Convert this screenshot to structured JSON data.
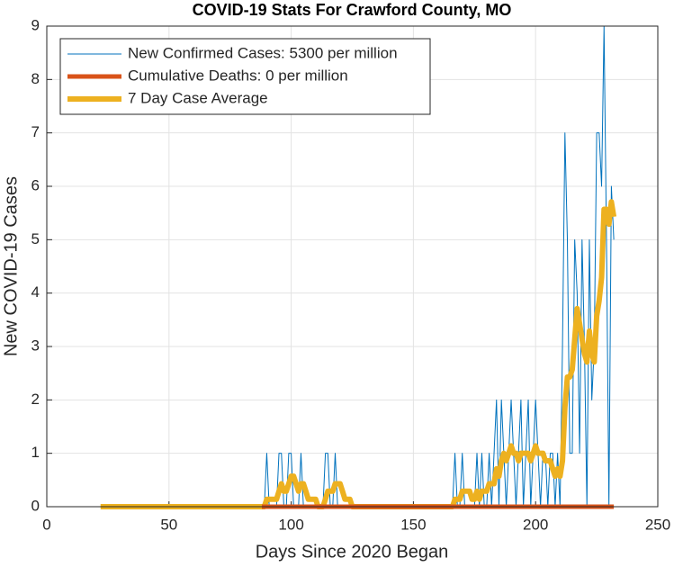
{
  "chart_data": {
    "type": "line",
    "title": "COVID-19 Stats For Crawford County, MO",
    "xlabel": "Days Since 2020 Began",
    "ylabel": "New COVID-19 Cases",
    "xlim": [
      0,
      250
    ],
    "ylim": [
      0,
      9
    ],
    "xticks": [
      0,
      50,
      100,
      150,
      200,
      250
    ],
    "yticks": [
      0,
      1,
      2,
      3,
      4,
      5,
      6,
      7,
      8,
      9
    ],
    "grid": true,
    "legend_position": "northwest",
    "x": [
      22,
      23,
      24,
      25,
      26,
      27,
      28,
      29,
      30,
      31,
      32,
      33,
      34,
      35,
      36,
      37,
      38,
      39,
      40,
      41,
      42,
      43,
      44,
      45,
      46,
      47,
      48,
      49,
      50,
      51,
      52,
      53,
      54,
      55,
      56,
      57,
      58,
      59,
      60,
      61,
      62,
      63,
      64,
      65,
      66,
      67,
      68,
      69,
      70,
      71,
      72,
      73,
      74,
      75,
      76,
      77,
      78,
      79,
      80,
      81,
      82,
      83,
      84,
      85,
      86,
      87,
      88,
      89,
      90,
      91,
      92,
      93,
      94,
      95,
      96,
      97,
      98,
      99,
      100,
      101,
      102,
      103,
      104,
      105,
      106,
      107,
      108,
      109,
      110,
      111,
      112,
      113,
      114,
      115,
      116,
      117,
      118,
      119,
      120,
      121,
      122,
      123,
      124,
      125,
      126,
      127,
      128,
      129,
      130,
      131,
      132,
      133,
      134,
      135,
      136,
      137,
      138,
      139,
      140,
      141,
      142,
      143,
      144,
      145,
      146,
      147,
      148,
      149,
      150,
      151,
      152,
      153,
      154,
      155,
      156,
      157,
      158,
      159,
      160,
      161,
      162,
      163,
      164,
      165,
      166,
      167,
      168,
      169,
      170,
      171,
      172,
      173,
      174,
      175,
      176,
      177,
      178,
      179,
      180,
      181,
      182,
      183,
      184,
      185,
      186,
      187,
      188,
      189,
      190,
      191,
      192,
      193,
      194,
      195,
      196,
      197,
      198,
      199,
      200,
      201,
      202,
      203,
      204,
      205,
      206,
      207,
      208,
      209,
      210,
      211,
      212,
      213,
      214,
      215,
      216,
      217,
      218,
      219,
      220,
      221,
      222,
      223,
      224,
      225,
      226,
      227,
      228,
      229,
      230,
      231,
      232
    ],
    "series": [
      {
        "name": "New Confirmed Cases: 5300 per million",
        "color": "#0072bd",
        "width": 1,
        "values": [
          0,
          0,
          0,
          0,
          0,
          0,
          0,
          0,
          0,
          0,
          0,
          0,
          0,
          0,
          0,
          0,
          0,
          0,
          0,
          0,
          0,
          0,
          0,
          0,
          0,
          0,
          0,
          0,
          0,
          0,
          0,
          0,
          0,
          0,
          0,
          0,
          0,
          0,
          0,
          0,
          0,
          0,
          0,
          0,
          0,
          0,
          0,
          0,
          0,
          0,
          0,
          0,
          0,
          0,
          0,
          0,
          0,
          0,
          0,
          0,
          0,
          0,
          0,
          0,
          0,
          0,
          0,
          0,
          1,
          0,
          0,
          0,
          0,
          1,
          1,
          0,
          0,
          1,
          1,
          0,
          0,
          0,
          1,
          0,
          0,
          0,
          0,
          0,
          0,
          0,
          0,
          0,
          1,
          1,
          0,
          0,
          1,
          0,
          0,
          0,
          0,
          0,
          0,
          0,
          0,
          0,
          0,
          0,
          0,
          0,
          0,
          0,
          0,
          0,
          0,
          0,
          0,
          0,
          0,
          0,
          0,
          0,
          0,
          0,
          0,
          0,
          0,
          0,
          0,
          0,
          0,
          0,
          0,
          0,
          0,
          0,
          0,
          0,
          0,
          0,
          0,
          0,
          0,
          0,
          0,
          1,
          0,
          0,
          1,
          0,
          0,
          0,
          0,
          0,
          1,
          0,
          1,
          0,
          0,
          1,
          0,
          1,
          2,
          0,
          2,
          1,
          0,
          1,
          2,
          1,
          0,
          1,
          2,
          0,
          1,
          2,
          0,
          1,
          2,
          1,
          0,
          1,
          1,
          0,
          1,
          1,
          0,
          1,
          0,
          3,
          7,
          5,
          1,
          1,
          5,
          4,
          1,
          5,
          3,
          0,
          5,
          2,
          3,
          7,
          7,
          6,
          9,
          5,
          0,
          6,
          5
        ]
      },
      {
        "name": "Cumulative Deaths: 0 per million",
        "color": "#d95319",
        "width": 5,
        "values": [
          null,
          null,
          null,
          null,
          null,
          null,
          null,
          null,
          null,
          null,
          null,
          null,
          null,
          null,
          null,
          null,
          null,
          null,
          null,
          null,
          null,
          null,
          null,
          null,
          null,
          null,
          null,
          null,
          null,
          null,
          null,
          null,
          null,
          null,
          null,
          null,
          null,
          null,
          null,
          null,
          null,
          null,
          null,
          null,
          null,
          null,
          null,
          null,
          null,
          null,
          null,
          null,
          null,
          null,
          null,
          null,
          null,
          null,
          null,
          null,
          null,
          null,
          null,
          null,
          null,
          null,
          0,
          0,
          0,
          0,
          0,
          0,
          0,
          0,
          0,
          0,
          0,
          0,
          0,
          0,
          0,
          0,
          0,
          0,
          0,
          0,
          0,
          0,
          0,
          0,
          0,
          0,
          0,
          0,
          0,
          0,
          0,
          0,
          0,
          0,
          0,
          0,
          0,
          0,
          0,
          0,
          0,
          0,
          0,
          0,
          0,
          0,
          0,
          0,
          0,
          0,
          0,
          0,
          0,
          0,
          0,
          0,
          0,
          0,
          0,
          0,
          0,
          0,
          0,
          0,
          0,
          0,
          0,
          0,
          0,
          0,
          0,
          0,
          0,
          0,
          0,
          0,
          0,
          0,
          0,
          0,
          0,
          0,
          0,
          0,
          0,
          0,
          0,
          0,
          0,
          0,
          0,
          0,
          0,
          0,
          0,
          0,
          0,
          0,
          0,
          0,
          0,
          0,
          0,
          0,
          0,
          0,
          0,
          0,
          0,
          0,
          0,
          0,
          0,
          0,
          0,
          0,
          0,
          0,
          0,
          0,
          0,
          0,
          0,
          0,
          0,
          0,
          0,
          0,
          0,
          0,
          0,
          0,
          0,
          0,
          0,
          0,
          0,
          0,
          0,
          0,
          0,
          0,
          0,
          0,
          0
        ]
      },
      {
        "name": "7 Day Case Average",
        "color": "#edb120",
        "width": 6,
        "values": [
          0,
          0,
          0,
          0,
          0,
          0,
          0,
          0,
          0,
          0,
          0,
          0,
          0,
          0,
          0,
          0,
          0,
          0,
          0,
          0,
          0,
          0,
          0,
          0,
          0,
          0,
          0,
          0,
          0,
          0,
          0,
          0,
          0,
          0,
          0,
          0,
          0,
          0,
          0,
          0,
          0,
          0,
          0,
          0,
          0,
          0,
          0,
          0,
          0,
          0,
          0,
          0,
          0,
          0,
          0,
          0,
          0,
          0,
          0,
          0,
          0,
          0,
          0,
          0,
          0,
          0,
          0,
          0,
          0.14,
          0.14,
          0.14,
          0.14,
          0.14,
          0.29,
          0.43,
          0.29,
          0.29,
          0.43,
          0.57,
          0.57,
          0.43,
          0.29,
          0.43,
          0.43,
          0.29,
          0.14,
          0.14,
          0.14,
          0.14,
          0,
          0,
          0,
          0.14,
          0.29,
          0.29,
          0.29,
          0.43,
          0.43,
          0.43,
          0.29,
          0.14,
          0.14,
          0.14,
          0,
          0,
          0,
          0,
          0,
          0,
          0,
          0,
          0,
          0,
          0,
          0,
          0,
          0,
          0,
          0,
          0,
          0,
          0,
          0,
          0,
          0,
          0,
          0,
          0,
          0,
          0,
          0,
          0,
          0,
          0,
          0,
          0,
          0,
          0,
          0,
          0,
          0,
          0,
          0,
          0,
          0,
          0.14,
          0.14,
          0.14,
          0.29,
          0.29,
          0.29,
          0.29,
          0.14,
          0.14,
          0.29,
          0.14,
          0.29,
          0.29,
          0.29,
          0.43,
          0.43,
          0.43,
          0.71,
          0.57,
          0.86,
          1,
          0.86,
          1,
          1.14,
          1,
          1,
          0.86,
          1,
          1,
          1,
          1,
          0.86,
          1,
          1.14,
          1,
          1,
          1,
          0.86,
          0.86,
          0.86,
          0.71,
          0.57,
          0.71,
          0.57,
          0.86,
          1.86,
          2.43,
          2.43,
          2.57,
          3.14,
          3.71,
          3.43,
          3.14,
          2.86,
          2.71,
          3.29,
          2.86,
          2.71,
          3.57,
          3.86,
          4.29,
          5.57,
          5.57,
          5.29,
          5.71,
          5.43
        ]
      }
    ]
  }
}
